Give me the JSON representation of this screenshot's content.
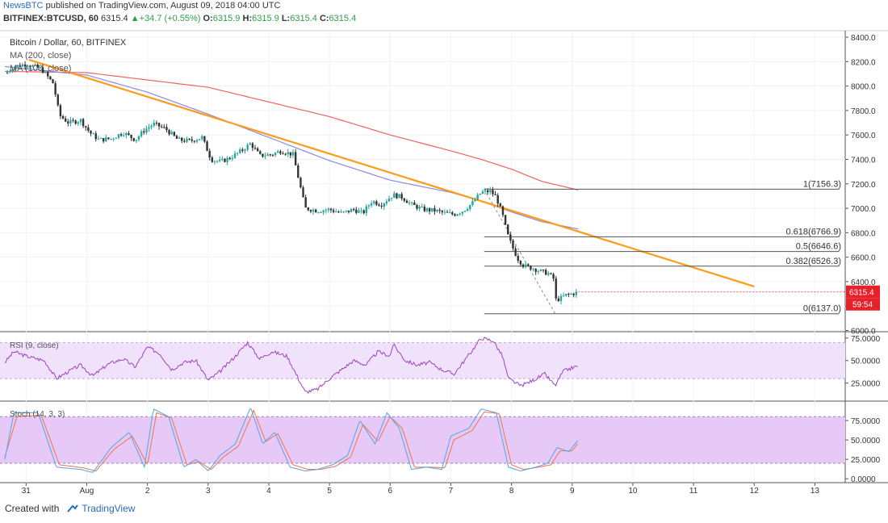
{
  "header": {
    "publisher": "NewsBTC",
    "published_text": "published on TradingView.com, August 09, 2018 04:00 UTC",
    "symbol": "BITFINEX:BTCUSD, 60",
    "last": "6315.4",
    "change": "+34.7 (+0.55%)",
    "o_label": "O:",
    "o": "6315.9",
    "h_label": "H:",
    "h": "6315.9",
    "l_label": "L:",
    "l": "6315.4",
    "c_label": "C:",
    "c": "6315.4"
  },
  "footer": {
    "created_with": "Created with",
    "brand": "TradingView"
  },
  "colors": {
    "up": "#26a69a",
    "down": "#333333",
    "ma200": "#f06262",
    "ma100": "#8a8ae0",
    "trendline": "#ff9a1a",
    "rsi": "#9c44c0",
    "rsi_band": "#f1e2fb",
    "stoch_k": "#5fa8e8",
    "stoch_d": "#f07a5a",
    "stoch_band": "#e6c9f7",
    "price_tag": "#e8202a",
    "fib": "#555555"
  },
  "chart_data": {
    "type": "candlestick",
    "title": "Bitcoin / Dollar, 60, BITFINEX",
    "indicators": [
      "MA (200, close)",
      "MA (100, close)"
    ],
    "x_tick_labels": [
      "31",
      "Aug",
      "2",
      "3",
      "4",
      "5",
      "6",
      "7",
      "8",
      "9",
      "10",
      "11",
      "12",
      "13"
    ],
    "x_tick_days": [
      0,
      1,
      2,
      3,
      4,
      5,
      6,
      7,
      8,
      9,
      10,
      11,
      12,
      13
    ],
    "x_domain_days": [
      -0.35,
      13.5
    ],
    "price_axis": {
      "ticks": [
        6000,
        6200,
        6400,
        6600,
        6800,
        7000,
        7200,
        7400,
        7600,
        7800,
        8000,
        8200,
        8400
      ],
      "tick_labels": [
        "6000.0",
        "6200.0",
        "6400.0",
        "6600.0",
        "6800.0",
        "7000.0",
        "7200.0",
        "7400.0",
        "7600.0",
        "7800.0",
        "8000.0",
        "8200.0",
        "8400.0"
      ],
      "ylim": [
        5990,
        8440
      ]
    },
    "price_anchors": [
      [
        -0.35,
        8100
      ],
      [
        -0.2,
        8160
      ],
      [
        0,
        8180
      ],
      [
        0.25,
        8140
      ],
      [
        0.45,
        8020
      ],
      [
        0.55,
        7760
      ],
      [
        0.7,
        7700
      ],
      [
        0.9,
        7720
      ],
      [
        1.05,
        7620
      ],
      [
        1.2,
        7560
      ],
      [
        1.4,
        7570
      ],
      [
        1.6,
        7620
      ],
      [
        1.8,
        7560
      ],
      [
        1.95,
        7640
      ],
      [
        2.1,
        7690
      ],
      [
        2.3,
        7650
      ],
      [
        2.5,
        7560
      ],
      [
        2.7,
        7550
      ],
      [
        2.9,
        7580
      ],
      [
        3.05,
        7400
      ],
      [
        3.2,
        7380
      ],
      [
        3.35,
        7410
      ],
      [
        3.55,
        7470
      ],
      [
        3.7,
        7530
      ],
      [
        3.85,
        7430
      ],
      [
        4.05,
        7440
      ],
      [
        4.2,
        7470
      ],
      [
        4.4,
        7440
      ],
      [
        4.6,
        7000
      ],
      [
        4.8,
        6980
      ],
      [
        5.0,
        6990
      ],
      [
        5.2,
        6960
      ],
      [
        5.4,
        6990
      ],
      [
        5.55,
        6960
      ],
      [
        5.7,
        7060
      ],
      [
        5.85,
        7030
      ],
      [
        6.05,
        7110
      ],
      [
        6.2,
        7090
      ],
      [
        6.35,
        7030
      ],
      [
        6.55,
        6990
      ],
      [
        6.75,
        6980
      ],
      [
        6.9,
        6960
      ],
      [
        7.05,
        6950
      ],
      [
        7.2,
        6980
      ],
      [
        7.35,
        7040
      ],
      [
        7.5,
        7130
      ],
      [
        7.65,
        7140
      ],
      [
        7.75,
        7090
      ],
      [
        7.85,
        6950
      ],
      [
        7.93,
        6790
      ],
      [
        8.0,
        6700
      ],
      [
        8.1,
        6590
      ],
      [
        8.2,
        6530
      ],
      [
        8.35,
        6510
      ],
      [
        8.5,
        6480
      ],
      [
        8.6,
        6470
      ],
      [
        8.7,
        6420
      ],
      [
        8.72,
        6250
      ],
      [
        8.8,
        6260
      ],
      [
        8.9,
        6290
      ],
      [
        9.0,
        6300
      ],
      [
        9.1,
        6315
      ]
    ],
    "last_price": 6315.4,
    "price_tag_label": "6315.4",
    "countdown_label": "59:54",
    "ma200": [
      [
        -0.35,
        8120
      ],
      [
        1,
        8110
      ],
      [
        2,
        8050
      ],
      [
        3,
        7990
      ],
      [
        4,
        7870
      ],
      [
        5,
        7750
      ],
      [
        6,
        7600
      ],
      [
        7,
        7470
      ],
      [
        7.5,
        7400
      ],
      [
        8,
        7320
      ],
      [
        8.5,
        7220
      ],
      [
        9.1,
        7150
      ]
    ],
    "ma100": [
      [
        -0.35,
        8160
      ],
      [
        1,
        8090
      ],
      [
        2,
        7950
      ],
      [
        3,
        7770
      ],
      [
        4,
        7580
      ],
      [
        5,
        7390
      ],
      [
        6,
        7230
      ],
      [
        7,
        7130
      ],
      [
        7.5,
        7060
      ],
      [
        8,
        6970
      ],
      [
        8.5,
        6890
      ],
      [
        9.1,
        6830
      ]
    ],
    "trendline": {
      "start": [
        0.05,
        8215
      ],
      "end": [
        12.0,
        6360
      ]
    },
    "fib_dashed_line": {
      "start": [
        7.55,
        7156.3
      ],
      "end": [
        8.72,
        6137.0
      ]
    },
    "fib_levels": [
      {
        "label": "1(7156.3)",
        "value": 7156.3
      },
      {
        "label": "0.618(6766.9)",
        "value": 6766.9
      },
      {
        "label": "0.5(6646.6)",
        "value": 6646.6
      },
      {
        "label": "0.382(6526.3)",
        "value": 6526.3
      },
      {
        "label": "0(6137.0)",
        "value": 6137.0
      }
    ],
    "fib_x_range": [
      7.55,
      13.4
    ],
    "rsi": {
      "label": "RSI (9, close)",
      "ticks": [
        25,
        50,
        75
      ],
      "tick_labels": [
        "25.0000",
        "50.0000",
        "75.0000"
      ],
      "band": [
        30,
        70
      ],
      "ylim": [
        5,
        82
      ],
      "anchors": [
        [
          -0.35,
          48
        ],
        [
          -0.2,
          60
        ],
        [
          0,
          55
        ],
        [
          0.3,
          50
        ],
        [
          0.5,
          30
        ],
        [
          0.7,
          38
        ],
        [
          0.9,
          45
        ],
        [
          1.1,
          33
        ],
        [
          1.35,
          46
        ],
        [
          1.6,
          52
        ],
        [
          1.8,
          43
        ],
        [
          2.0,
          65
        ],
        [
          2.2,
          58
        ],
        [
          2.4,
          40
        ],
        [
          2.6,
          48
        ],
        [
          2.8,
          50
        ],
        [
          3.0,
          28
        ],
        [
          3.2,
          38
        ],
        [
          3.45,
          55
        ],
        [
          3.65,
          70
        ],
        [
          3.85,
          52
        ],
        [
          4.05,
          60
        ],
        [
          4.3,
          55
        ],
        [
          4.45,
          35
        ],
        [
          4.6,
          15
        ],
        [
          4.8,
          18
        ],
        [
          5.0,
          30
        ],
        [
          5.2,
          40
        ],
        [
          5.4,
          50
        ],
        [
          5.6,
          45
        ],
        [
          5.8,
          60
        ],
        [
          6.0,
          55
        ],
        [
          6.05,
          68
        ],
        [
          6.25,
          50
        ],
        [
          6.45,
          45
        ],
        [
          6.65,
          48
        ],
        [
          6.85,
          40
        ],
        [
          7.05,
          35
        ],
        [
          7.25,
          52
        ],
        [
          7.5,
          75
        ],
        [
          7.7,
          72
        ],
        [
          7.85,
          55
        ],
        [
          7.95,
          30
        ],
        [
          8.15,
          22
        ],
        [
          8.35,
          28
        ],
        [
          8.55,
          35
        ],
        [
          8.72,
          22
        ],
        [
          8.85,
          38
        ],
        [
          9.0,
          42
        ],
        [
          9.1,
          44
        ]
      ]
    },
    "stoch": {
      "label": "Stoch (14, 3, 3)",
      "ticks": [
        0,
        25,
        50,
        75
      ],
      "tick_labels": [
        "0.0000",
        "25.0000",
        "50.0000",
        "75.0000"
      ],
      "band": [
        20,
        80
      ],
      "ylim": [
        -5,
        100
      ],
      "k_anchors": [
        [
          -0.35,
          25
        ],
        [
          -0.2,
          85
        ],
        [
          0.2,
          85
        ],
        [
          0.5,
          15
        ],
        [
          0.9,
          12
        ],
        [
          1.1,
          8
        ],
        [
          1.4,
          40
        ],
        [
          1.7,
          60
        ],
        [
          1.95,
          15
        ],
        [
          2.1,
          90
        ],
        [
          2.35,
          80
        ],
        [
          2.6,
          15
        ],
        [
          2.8,
          25
        ],
        [
          3.0,
          10
        ],
        [
          3.2,
          30
        ],
        [
          3.45,
          45
        ],
        [
          3.7,
          92
        ],
        [
          3.9,
          45
        ],
        [
          4.1,
          60
        ],
        [
          4.35,
          15
        ],
        [
          4.6,
          10
        ],
        [
          4.8,
          12
        ],
        [
          5.05,
          18
        ],
        [
          5.3,
          30
        ],
        [
          5.5,
          75
        ],
        [
          5.75,
          45
        ],
        [
          5.95,
          85
        ],
        [
          6.15,
          65
        ],
        [
          6.35,
          12
        ],
        [
          6.6,
          15
        ],
        [
          6.85,
          12
        ],
        [
          7.0,
          55
        ],
        [
          7.3,
          65
        ],
        [
          7.5,
          90
        ],
        [
          7.75,
          85
        ],
        [
          7.95,
          15
        ],
        [
          8.15,
          10
        ],
        [
          8.4,
          15
        ],
        [
          8.6,
          20
        ],
        [
          8.75,
          40
        ],
        [
          8.95,
          35
        ],
        [
          9.1,
          50
        ]
      ],
      "d_anchors": [
        [
          -0.35,
          28
        ],
        [
          -0.15,
          80
        ],
        [
          0.25,
          82
        ],
        [
          0.55,
          18
        ],
        [
          0.95,
          14
        ],
        [
          1.15,
          10
        ],
        [
          1.45,
          38
        ],
        [
          1.75,
          55
        ],
        [
          2.0,
          18
        ],
        [
          2.15,
          85
        ],
        [
          2.4,
          78
        ],
        [
          2.65,
          18
        ],
        [
          2.85,
          22
        ],
        [
          3.05,
          12
        ],
        [
          3.25,
          28
        ],
        [
          3.5,
          42
        ],
        [
          3.75,
          88
        ],
        [
          3.95,
          48
        ],
        [
          4.15,
          58
        ],
        [
          4.4,
          18
        ],
        [
          4.65,
          12
        ],
        [
          4.85,
          12
        ],
        [
          5.1,
          16
        ],
        [
          5.35,
          28
        ],
        [
          5.55,
          70
        ],
        [
          5.8,
          48
        ],
        [
          6.0,
          80
        ],
        [
          6.2,
          65
        ],
        [
          6.4,
          15
        ],
        [
          6.65,
          15
        ],
        [
          6.9,
          14
        ],
        [
          7.05,
          50
        ],
        [
          7.35,
          62
        ],
        [
          7.55,
          86
        ],
        [
          7.8,
          84
        ],
        [
          8.0,
          18
        ],
        [
          8.2,
          12
        ],
        [
          8.45,
          15
        ],
        [
          8.65,
          18
        ],
        [
          8.8,
          36
        ],
        [
          9.0,
          36
        ],
        [
          9.1,
          46
        ]
      ]
    }
  }
}
